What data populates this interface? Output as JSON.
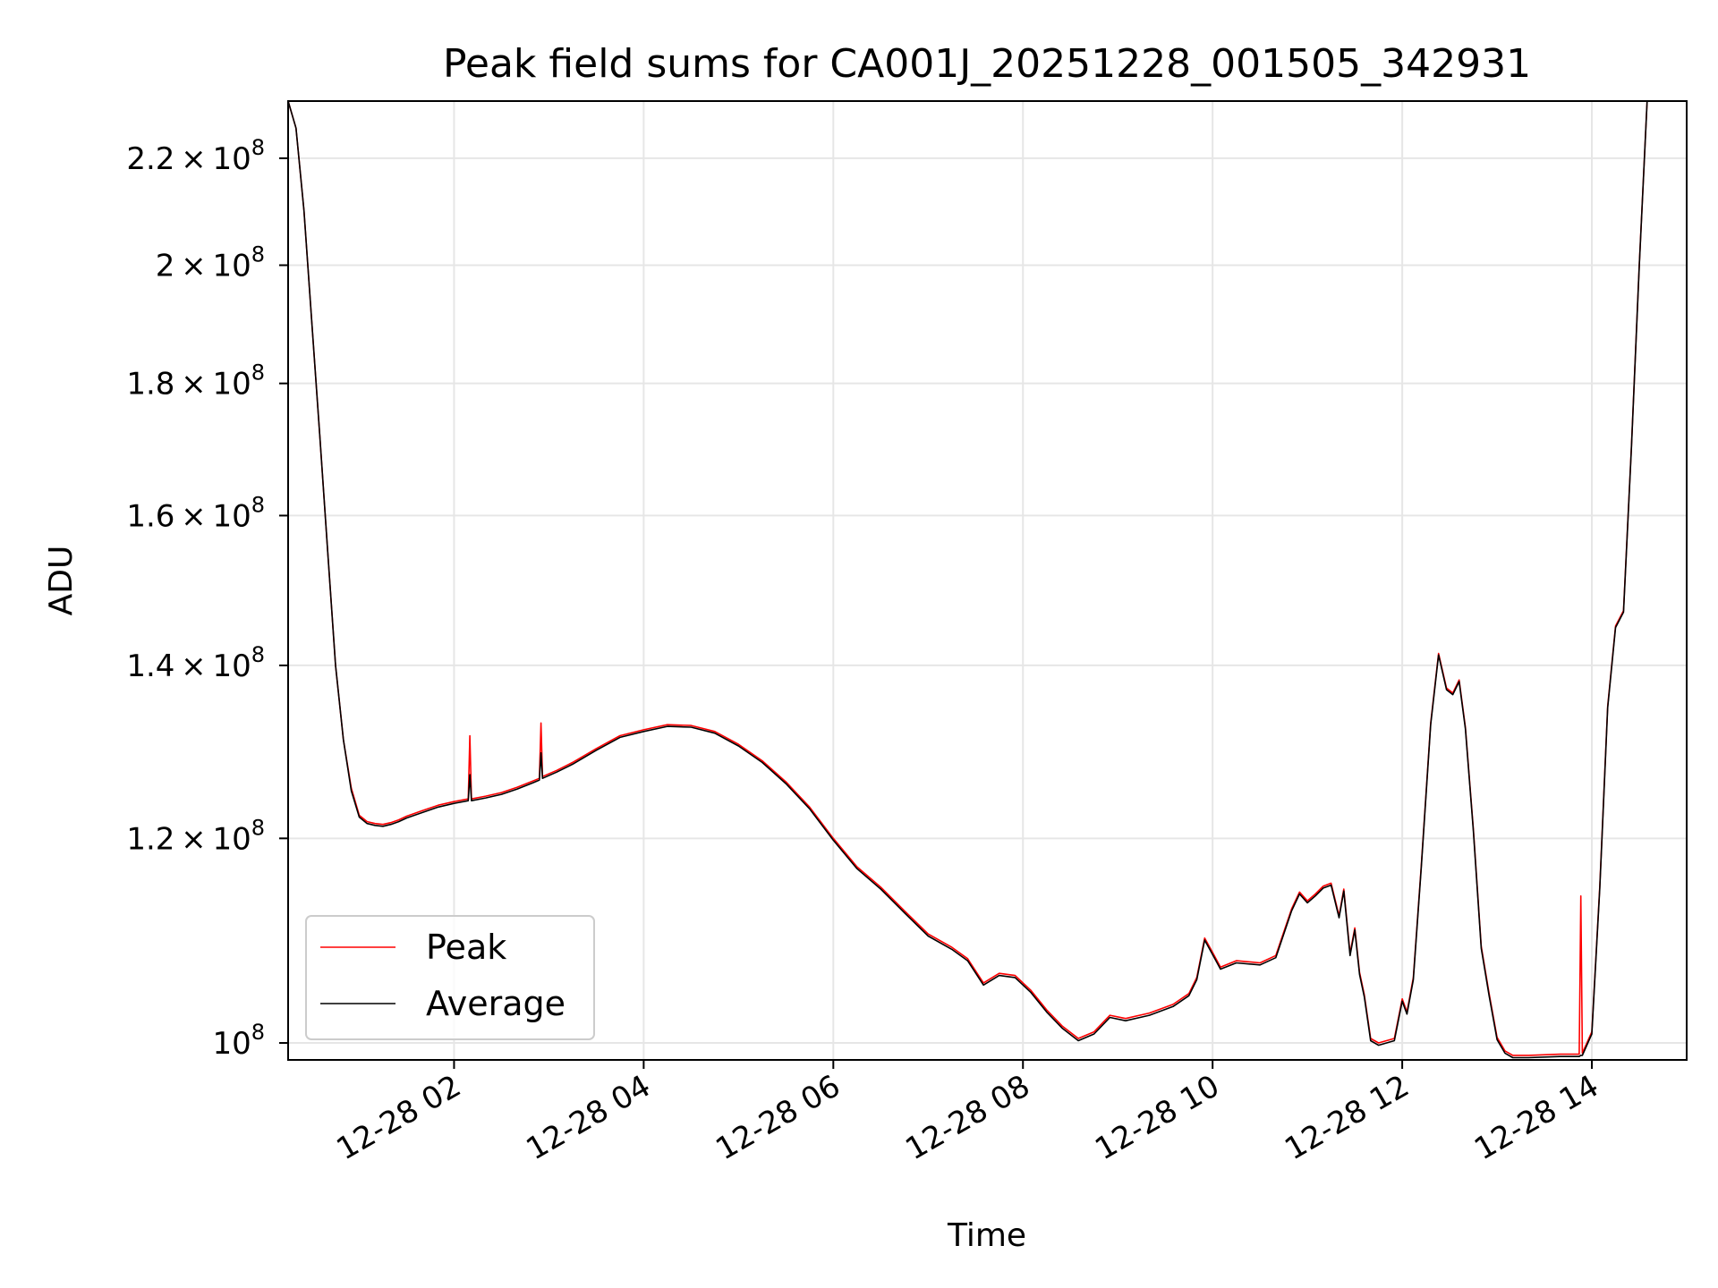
{
  "chart_data": {
    "type": "line",
    "title": "Peak field sums for CA001J_20251228_001505_342931",
    "xlabel": "Time",
    "ylabel": "ADU",
    "xlim": [
      "2025-12-28T00:15:00",
      "2025-12-28T15:00:00"
    ],
    "ylim": [
      98500000,
      231500000
    ],
    "yscale": "log",
    "grid": true,
    "legend": "lower-left",
    "x_ticks": [
      "12-28 02",
      "12-28 04",
      "12-28 06",
      "12-28 08",
      "12-28 10",
      "12-28 12",
      "12-28 14"
    ],
    "x_tick_values": [
      "2025-12-28T02:00:00",
      "2025-12-28T04:00:00",
      "2025-12-28T06:00:00",
      "2025-12-28T08:00:00",
      "2025-12-28T10:00:00",
      "2025-12-28T12:00:00",
      "2025-12-28T14:00:00"
    ],
    "y_ticks": [
      {
        "value": 100000000,
        "mantissa": "",
        "exponent": "8"
      },
      {
        "value": 120000000,
        "mantissa": "1.2",
        "exponent": "8"
      },
      {
        "value": 140000000,
        "mantissa": "1.4",
        "exponent": "8"
      },
      {
        "value": 160000000,
        "mantissa": "1.6",
        "exponent": "8"
      },
      {
        "value": 180000000,
        "mantissa": "1.8",
        "exponent": "8"
      },
      {
        "value": 200000000,
        "mantissa": "2",
        "exponent": "8"
      },
      {
        "value": 220000000,
        "mantissa": "2.2",
        "exponent": "8"
      }
    ],
    "x": [
      "2025-12-28T00:15:00",
      "2025-12-28T00:20:00",
      "2025-12-28T00:25:00",
      "2025-12-28T00:30:00",
      "2025-12-28T00:35:00",
      "2025-12-28T00:40:00",
      "2025-12-28T00:45:00",
      "2025-12-28T00:50:00",
      "2025-12-28T00:55:00",
      "2025-12-28T01:00:00",
      "2025-12-28T01:05:00",
      "2025-12-28T01:10:00",
      "2025-12-28T01:15:00",
      "2025-12-28T01:20:00",
      "2025-12-28T01:25:00",
      "2025-12-28T01:30:00",
      "2025-12-28T01:40:00",
      "2025-12-28T01:50:00",
      "2025-12-28T02:00:00",
      "2025-12-28T02:09:00",
      "2025-12-28T02:10:00",
      "2025-12-28T02:11:00",
      "2025-12-28T02:20:00",
      "2025-12-28T02:30:00",
      "2025-12-28T02:40:00",
      "2025-12-28T02:50:00",
      "2025-12-28T02:54:00",
      "2025-12-28T02:55:00",
      "2025-12-28T02:56:00",
      "2025-12-28T03:05:00",
      "2025-12-28T03:15:00",
      "2025-12-28T03:30:00",
      "2025-12-28T03:45:00",
      "2025-12-28T04:00:00",
      "2025-12-28T04:15:00",
      "2025-12-28T04:30:00",
      "2025-12-28T04:45:00",
      "2025-12-28T05:00:00",
      "2025-12-28T05:15:00",
      "2025-12-28T05:30:00",
      "2025-12-28T05:45:00",
      "2025-12-28T06:00:00",
      "2025-12-28T06:15:00",
      "2025-12-28T06:30:00",
      "2025-12-28T06:45:00",
      "2025-12-28T07:00:00",
      "2025-12-28T07:15:00",
      "2025-12-28T07:25:00",
      "2025-12-28T07:35:00",
      "2025-12-28T07:45:00",
      "2025-12-28T07:55:00",
      "2025-12-28T08:05:00",
      "2025-12-28T08:15:00",
      "2025-12-28T08:25:00",
      "2025-12-28T08:35:00",
      "2025-12-28T08:45:00",
      "2025-12-28T08:55:00",
      "2025-12-28T09:05:00",
      "2025-12-28T09:20:00",
      "2025-12-28T09:35:00",
      "2025-12-28T09:45:00",
      "2025-12-28T09:50:00",
      "2025-12-28T09:55:00",
      "2025-12-28T10:00:00",
      "2025-12-28T10:05:00",
      "2025-12-28T10:15:00",
      "2025-12-28T10:30:00",
      "2025-12-28T10:40:00",
      "2025-12-28T10:50:00",
      "2025-12-28T10:55:00",
      "2025-12-28T11:00:00",
      "2025-12-28T11:05:00",
      "2025-12-28T11:10:00",
      "2025-12-28T11:15:00",
      "2025-12-28T11:20:00",
      "2025-12-28T11:23:00",
      "2025-12-28T11:27:00",
      "2025-12-28T11:30:00",
      "2025-12-28T11:33:00",
      "2025-12-28T11:36:00",
      "2025-12-28T11:40:00",
      "2025-12-28T11:45:00",
      "2025-12-28T11:55:00",
      "2025-12-28T12:00:00",
      "2025-12-28T12:03:00",
      "2025-12-28T12:07:00",
      "2025-12-28T12:12:00",
      "2025-12-28T12:18:00",
      "2025-12-28T12:23:00",
      "2025-12-28T12:28:00",
      "2025-12-28T12:32:00",
      "2025-12-28T12:36:00",
      "2025-12-28T12:40:00",
      "2025-12-28T12:45:00",
      "2025-12-28T12:50:00",
      "2025-12-28T12:55:00",
      "2025-12-28T13:00:00",
      "2025-12-28T13:05:00",
      "2025-12-28T13:10:00",
      "2025-12-28T13:20:00",
      "2025-12-28T13:40:00",
      "2025-12-28T13:52:00",
      "2025-12-28T13:53:00",
      "2025-12-28T13:54:00",
      "2025-12-28T14:00:00",
      "2025-12-28T14:05:00",
      "2025-12-28T14:10:00",
      "2025-12-28T14:15:00",
      "2025-12-28T14:20:00",
      "2025-12-28T14:25:00",
      "2025-12-28T14:30:00",
      "2025-12-28T14:35:00"
    ],
    "series": [
      {
        "name": "Peak",
        "color": "#ff0000",
        "values": [
          231500000,
          226000000,
          210000000,
          190000000,
          172000000,
          155000000,
          140000000,
          131000000,
          125500000,
          122500000,
          121800000,
          121600000,
          121500000,
          121700000,
          122000000,
          122400000,
          123000000,
          123600000,
          124000000,
          124300000,
          131500000,
          124300000,
          124600000,
          125000000,
          125600000,
          126300000,
          126600000,
          133000000,
          126800000,
          127500000,
          128400000,
          130000000,
          131500000,
          132200000,
          132800000,
          132700000,
          132000000,
          130500000,
          128600000,
          126200000,
          123400000,
          120000000,
          117000000,
          114900000,
          112500000,
          110200000,
          108900000,
          107800000,
          105500000,
          106400000,
          106200000,
          104800000,
          103000000,
          101500000,
          100400000,
          101000000,
          102500000,
          102200000,
          102700000,
          103500000,
          104500000,
          106000000,
          109800000,
          108400000,
          107000000,
          107600000,
          107400000,
          108100000,
          112700000,
          114400000,
          113500000,
          114200000,
          115000000,
          115300000,
          112000000,
          114700000,
          108300000,
          110800000,
          106500000,
          104400000,
          100400000,
          100000000,
          100400000,
          104000000,
          102800000,
          106000000,
          117000000,
          133000000,
          141500000,
          137200000,
          136600000,
          138200000,
          132500000,
          121000000,
          109000000,
          104500000,
          100500000,
          99300000,
          98900000,
          98900000,
          99000000,
          99000000,
          114000000,
          99100000,
          101000000,
          115000000,
          135000000,
          145000000,
          147000000,
          170000000,
          200000000,
          231500000
        ]
      },
      {
        "name": "Average",
        "color": "#000000",
        "values": [
          231500000,
          226000000,
          210000000,
          190000000,
          172000000,
          155000000,
          140000000,
          131000000,
          125200000,
          122300000,
          121600000,
          121400000,
          121300000,
          121500000,
          121800000,
          122200000,
          122800000,
          123400000,
          123800000,
          124100000,
          127000000,
          124100000,
          124400000,
          124800000,
          125400000,
          126100000,
          126400000,
          129500000,
          126600000,
          127300000,
          128200000,
          129800000,
          131300000,
          132000000,
          132600000,
          132500000,
          131800000,
          130300000,
          128400000,
          126000000,
          123200000,
          119800000,
          116800000,
          114700000,
          112300000,
          110000000,
          108700000,
          107600000,
          105300000,
          106200000,
          106000000,
          104600000,
          102800000,
          101300000,
          100200000,
          100800000,
          102300000,
          102000000,
          102500000,
          103300000,
          104300000,
          105800000,
          109600000,
          108200000,
          106800000,
          107400000,
          107200000,
          107900000,
          112500000,
          114200000,
          113300000,
          114000000,
          114800000,
          115100000,
          111800000,
          114500000,
          108100000,
          110600000,
          106300000,
          104200000,
          100200000,
          99800000,
          100200000,
          103800000,
          102600000,
          105800000,
          116800000,
          132800000,
          141300000,
          137000000,
          136400000,
          138000000,
          132300000,
          120800000,
          108800000,
          104300000,
          100300000,
          99100000,
          98700000,
          98700000,
          98800000,
          98800000,
          98900000,
          98900000,
          100800000,
          114800000,
          134800000,
          144800000,
          146800000,
          169800000,
          199800000,
          231500000
        ]
      }
    ]
  }
}
